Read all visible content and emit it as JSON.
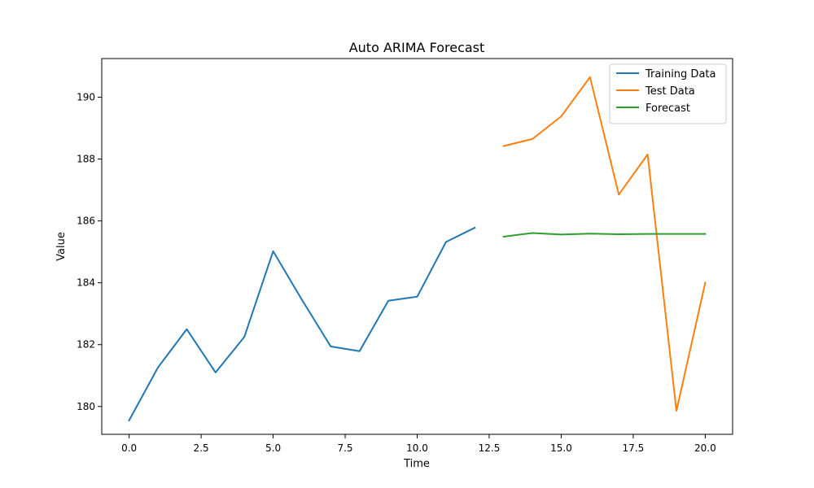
{
  "chart_data": {
    "type": "line",
    "title": "Auto ARIMA Forecast",
    "xlabel": "Time",
    "ylabel": "Value",
    "xlim": [
      -0.95,
      20.95
    ],
    "ylim": [
      179.1,
      191.25
    ],
    "xticks": [
      0.0,
      2.5,
      5.0,
      7.5,
      10.0,
      12.5,
      15.0,
      17.5,
      20.0
    ],
    "xtick_labels": [
      "0.0",
      "2.5",
      "5.0",
      "7.5",
      "10.0",
      "12.5",
      "15.0",
      "17.5",
      "20.0"
    ],
    "yticks": [
      180,
      182,
      184,
      186,
      188,
      190
    ],
    "ytick_labels": [
      "180",
      "182",
      "184",
      "186",
      "188",
      "190"
    ],
    "grid": false,
    "legend_position": "top-right",
    "series": [
      {
        "name": "Training Data",
        "color": "#1f77b4",
        "x": [
          0,
          1,
          2,
          3,
          4,
          5,
          6,
          7,
          8,
          9,
          10,
          11,
          12
        ],
        "y": [
          179.55,
          181.26,
          182.5,
          181.1,
          182.25,
          185.02,
          183.45,
          181.94,
          181.79,
          183.42,
          183.55,
          185.32,
          185.78
        ]
      },
      {
        "name": "Test Data",
        "color": "#ff7f0e",
        "x": [
          13,
          14,
          15,
          16,
          17,
          18,
          19,
          20
        ],
        "y": [
          188.42,
          188.65,
          189.38,
          190.65,
          186.85,
          188.15,
          179.86,
          184.0
        ]
      },
      {
        "name": "Forecast",
        "color": "#2ca02c",
        "x": [
          13,
          14,
          15,
          16,
          17,
          18,
          19,
          20
        ],
        "y": [
          185.49,
          185.61,
          185.56,
          185.59,
          185.57,
          185.58,
          185.58,
          185.58
        ]
      }
    ]
  }
}
